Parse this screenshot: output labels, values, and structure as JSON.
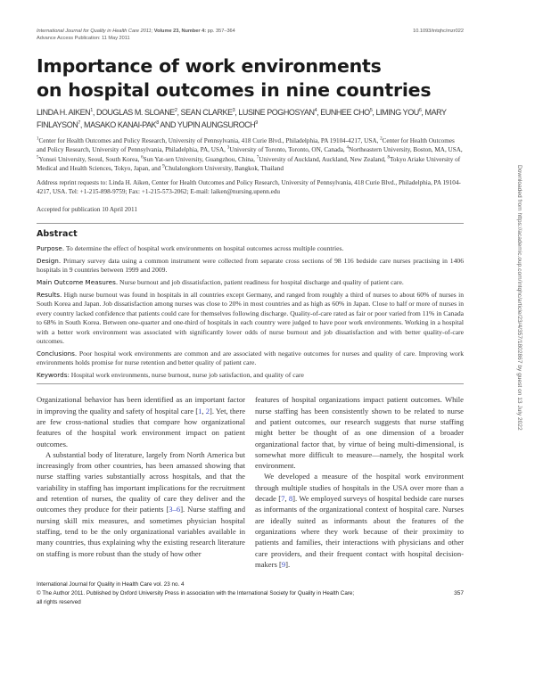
{
  "header": {
    "journal": "International Journal for Quality in Health Care",
    "year": "2011;",
    "volume": "Volume 23, Number 4:",
    "pages": "pp. 357–364",
    "advance_access": "Advance Access Publication: 11 May 2011",
    "doi": "10.1093/intqhc/mzr022"
  },
  "title_line1": "Importance of work environments",
  "title_line2": "on hospital outcomes in nine countries",
  "authors": [
    {
      "name": "LINDA H. AIKEN",
      "sup": "1",
      "sep": ", "
    },
    {
      "name": "DOUGLAS M. SLOANE",
      "sup": "2",
      "sep": ", "
    },
    {
      "name": "SEAN CLARKE",
      "sup": "3",
      "sep": ", "
    },
    {
      "name": "LUSINE POGHOSYAN",
      "sup": "4",
      "sep": ", "
    },
    {
      "name": "EUNHEE CHO",
      "sup": "5",
      "sep": ", "
    },
    {
      "name": "LIMING YOU",
      "sup": "6",
      "sep": ", "
    },
    {
      "name": "MARY FINLAYSON",
      "sup": "7",
      "sep": ", "
    },
    {
      "name": "MASAKO KANAI-PAK",
      "sup": "8",
      "sep": " AND "
    },
    {
      "name": "YUPIN AUNGSUROCH",
      "sup": "9",
      "sep": ""
    }
  ],
  "affiliations": [
    {
      "sup": "1",
      "text": "Center for Health Outcomes and Policy Research, University of Pennsylvania, 418 Curie Blvd., Philadelphia, PA 19104-4217, USA, "
    },
    {
      "sup": "2",
      "text": "Center for Health Outcomes and Policy Research, University of Pennsylvania, Philadelphia, PA, USA, "
    },
    {
      "sup": "3",
      "text": "University of Toronto, Toronto, ON, Canada, "
    },
    {
      "sup": "4",
      "text": "Northeastern University, Boston, MA, USA, "
    },
    {
      "sup": "5",
      "text": "Yonsei University, Seoul, South Korea, "
    },
    {
      "sup": "6",
      "text": "Sun Yat-sen University, Guangzhou, China, "
    },
    {
      "sup": "7",
      "text": "University of Auckland, Auckland, New Zealand, "
    },
    {
      "sup": "8",
      "text": "Tokyo Ariake University of Medical and Health Sciences, Tokyo, Japan, and "
    },
    {
      "sup": "9",
      "text": "Chulalongkorn University, Bangkok, Thailand"
    }
  ],
  "address": "Address reprint requests to: Linda H. Aiken, Center for Health Outcomes and Policy Research, University of Pennsylvania, 418 Curie Blvd., Philadelphia, PA 19104-4217, USA. Tel: +1-215-898-9759; Fax: +1-215-573-2062; E-mail: laiken@nursing.upenn.edu",
  "accepted": "Accepted for publication 10 April 2011",
  "abstract": {
    "heading": "Abstract",
    "sections": [
      {
        "label": "Purpose.",
        "text": "To determine the effect of hospital work environments on hospital outcomes across multiple countries."
      },
      {
        "label": "Design.",
        "text": "Primary survey data using a common instrument were collected from separate cross sections of 98 116 bedside care nurses practising in 1406 hospitals in 9 countries between 1999 and 2009."
      },
      {
        "label": "Main Outcome Measures.",
        "text": "Nurse burnout and job dissatisfaction, patient readiness for hospital discharge and quality of patient care."
      },
      {
        "label": "Results.",
        "text": "High nurse burnout was found in hospitals in all countries except Germany, and ranged from roughly a third of nurses to about 60% of nurses in South Korea and Japan. Job dissatisfaction among nurses was close to 20% in most countries and as high as 60% in Japan. Close to half or more of nurses in every country lacked confidence that patients could care for themselves following discharge. Quality-of-care rated as fair or poor varied from 11% in Canada to 68% in South Korea. Between one-quarter and one-third of hospitals in each country were judged to have poor work environments. Working in a hospital with a better work environment was associated with significantly lower odds of nurse burnout and job dissatisfaction and with better quality-of-care outcomes."
      },
      {
        "label": "Conclusions.",
        "text": "Poor hospital work environments are common and are associated with negative outcomes for nurses and quality of care. Improving work environments holds promise for nurse retention and better quality of patient care."
      },
      {
        "label": "Keywords:",
        "text": "Hospital work environments, nurse burnout, nurse job satisfaction, and quality of care"
      }
    ]
  },
  "body": {
    "left": [
      [
        {
          "t": "Organizational behavior has been identified as an important factor in improving the quality and safety of hospital care ["
        },
        {
          "t": "1",
          "ref": true
        },
        {
          "t": ", "
        },
        {
          "t": "2",
          "ref": true
        },
        {
          "t": "]. Yet, there are few cross-national studies that compare how organizational features of the hospital work environment impact on patient outcomes."
        }
      ],
      [
        {
          "t": "A substantial body of literature, largely from North America but increasingly from other countries, has been amassed showing that nurse staffing varies substantially across hospitals, and that the variability in staffing has important implications for the recruitment and retention of nurses, the quality of care they deliver and the outcomes they produce for their patients ["
        },
        {
          "t": "3–6",
          "ref": true
        },
        {
          "t": "]. Nurse staffing and nursing skill mix measures, and sometimes physician hospital staffing, tend to be the only organizational variables available in many countries, thus explaining why the existing research literature on staffing is more robust than the study of how other"
        }
      ]
    ],
    "right": [
      [
        {
          "t": "features of hospital organizations impact patient outcomes. While nurse staffing has been consistently shown to be related to nurse and patient outcomes, our research suggests that nurse staffing might better be thought of as one dimension of a broader organizational factor that, by virtue of being multi-dimensional, is somewhat more difficult to measure—namely, the hospital work environment."
        }
      ],
      [
        {
          "t": "We developed a measure of the hospital work environment through multiple studies of hospitals in the USA over more than a decade ["
        },
        {
          "t": "7",
          "ref": true
        },
        {
          "t": ", "
        },
        {
          "t": "8",
          "ref": true
        },
        {
          "t": "]. We employed surveys of hospital bedside care nurses as informants of the organizational context of hospital care. Nurses are ideally suited as informants about the features of the organizations where they work because of their proximity to patients and families, their interactions with physicians and other care providers, and their frequent contact with hospital decision-makers ["
        },
        {
          "t": "9",
          "ref": true
        },
        {
          "t": "]."
        }
      ]
    ]
  },
  "footer": {
    "journal_line": "International Journal for Quality in Health Care vol. 23 no. 4",
    "copyright_symbol": "©",
    "copyright": "The Author 2011. Published by Oxford University Press in association with the International Society for Quality in Health Care;",
    "rights": "all rights reserved",
    "page_number": "357"
  },
  "download_note": "Downloaded from https://academic.oup.com/intqhc/article/23/4/357/1802867 by guest on 13 July 2022",
  "colors": {
    "reference_link": "#3b4cc0",
    "rule": "#999999"
  }
}
